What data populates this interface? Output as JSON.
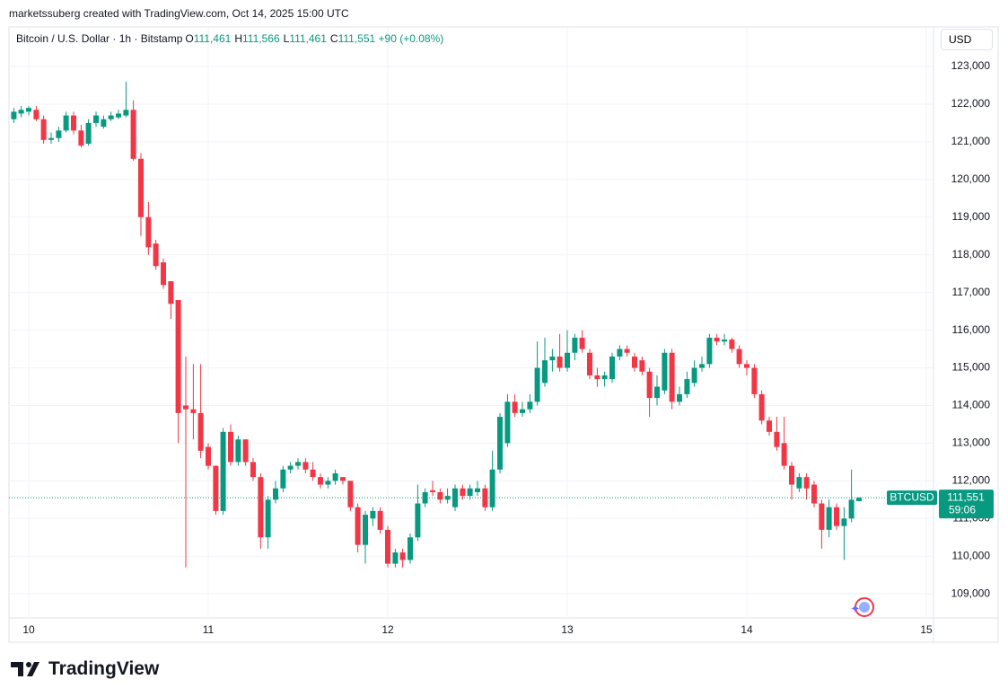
{
  "watermark": "marketssuberg created with TradingView.com, Oct 14, 2025 15:00 UTC",
  "legend": {
    "symbol": "Bitcoin / U.S. Dollar · 1h · Bitstamp",
    "ohlc": [
      {
        "key": "O",
        "value": "111,461"
      },
      {
        "key": "H",
        "value": "111,566"
      },
      {
        "key": "L",
        "value": "111,461"
      },
      {
        "key": "C",
        "value": "111,551"
      }
    ],
    "change": "+90 (+0.08%)"
  },
  "currency": "USD",
  "brand": "TradingView",
  "chart_data": {
    "type": "candlestick",
    "up_color": "#089981",
    "down_color": "#f23645",
    "grid": true,
    "symbol_tag": "BTCUSD",
    "last_price_label": "111,551",
    "countdown": "59:06",
    "xlim": [
      9.89,
      15.04
    ],
    "xticks": [
      10,
      11,
      12,
      13,
      14,
      15
    ],
    "ylim": [
      108360,
      124050
    ],
    "yticks": [
      {
        "value": 109000,
        "label": "109,000"
      },
      {
        "value": 110000,
        "label": "110,000"
      },
      {
        "value": 111000,
        "label": "111,000"
      },
      {
        "value": 112000,
        "label": "112,000"
      },
      {
        "value": 113000,
        "label": "113,000"
      },
      {
        "value": 114000,
        "label": "114,000"
      },
      {
        "value": 115000,
        "label": "115,000"
      },
      {
        "value": 116000,
        "label": "116,000"
      },
      {
        "value": 117000,
        "label": "117,000"
      },
      {
        "value": 118000,
        "label": "118,000"
      },
      {
        "value": 119000,
        "label": "119,000"
      },
      {
        "value": 120000,
        "label": "120,000"
      },
      {
        "value": 121000,
        "label": "121,000"
      },
      {
        "value": 122000,
        "label": "122,000"
      },
      {
        "value": 123000,
        "label": "123,000"
      }
    ],
    "x": [
      9.917,
      9.958,
      10,
      10.042,
      10.083,
      10.125,
      10.167,
      10.208,
      10.25,
      10.292,
      10.333,
      10.375,
      10.417,
      10.458,
      10.5,
      10.542,
      10.583,
      10.625,
      10.667,
      10.708,
      10.75,
      10.792,
      10.833,
      10.875,
      10.917,
      10.958,
      11,
      11.042,
      11.083,
      11.125,
      11.167,
      11.208,
      11.25,
      11.292,
      11.333,
      11.375,
      11.417,
      11.458,
      11.5,
      11.542,
      11.583,
      11.625,
      11.667,
      11.708,
      11.75,
      11.792,
      11.833,
      11.875,
      11.917,
      11.958,
      12,
      12.042,
      12.083,
      12.125,
      12.167,
      12.208,
      12.25,
      12.292,
      12.333,
      12.375,
      12.417,
      12.458,
      12.5,
      12.542,
      12.583,
      12.625,
      12.667,
      12.708,
      12.75,
      12.792,
      12.833,
      12.875,
      12.917,
      12.958,
      13,
      13.042,
      13.083,
      13.125,
      13.167,
      13.208,
      13.25,
      13.292,
      13.333,
      13.375,
      13.417,
      13.458,
      13.5,
      13.542,
      13.583,
      13.625,
      13.667,
      13.708,
      13.75,
      13.792,
      13.833,
      13.875,
      13.917,
      13.958,
      14,
      14.042,
      14.083,
      14.125,
      14.167,
      14.208,
      14.25,
      14.292,
      14.333,
      14.375,
      14.417,
      14.458,
      14.5,
      14.542,
      14.583,
      14.625
    ],
    "open": [
      121600,
      121750,
      121800,
      121850,
      121600,
      121050,
      121100,
      121300,
      121700,
      121300,
      120950,
      121500,
      121400,
      121600,
      121650,
      121700,
      121850,
      120550,
      119000,
      118300,
      117800,
      117300,
      116800,
      114000,
      113900,
      113800,
      112900,
      112400,
      111200,
      113300,
      112500,
      113100,
      112500,
      112100,
      110500,
      111500,
      111800,
      112300,
      112400,
      112500,
      112300,
      112100,
      111900,
      112000,
      112100,
      112000,
      111300,
      110300,
      111000,
      111200,
      110700,
      109800,
      110100,
      109900,
      110500,
      111400,
      111750,
      111700,
      111500,
      111300,
      111800,
      111600,
      111700,
      111800,
      111300,
      112300,
      113000,
      114100,
      113800,
      113900,
      114100,
      114600,
      115200,
      115300,
      115000,
      115400,
      115800,
      115400,
      114800,
      114700,
      114700,
      115300,
      115500,
      115300,
      115200,
      114900,
      114200,
      114400,
      115400,
      114100,
      114300,
      114600,
      115000,
      115100,
      115800,
      115700,
      115750,
      115500,
      115100,
      115000,
      114300,
      113600,
      113300,
      113000,
      112400,
      111800,
      112100,
      111900,
      111400,
      110700,
      111300,
      110800,
      111000,
      111461
    ],
    "high": [
      121900,
      121950,
      121950,
      121950,
      121700,
      121250,
      121400,
      121800,
      121800,
      121450,
      121600,
      121800,
      121700,
      121800,
      121850,
      122600,
      122100,
      120700,
      119400,
      118400,
      117900,
      117300,
      116800,
      115300,
      115100,
      115100,
      113000,
      112400,
      113400,
      113500,
      113200,
      113100,
      112600,
      112200,
      111600,
      112000,
      112400,
      112500,
      112600,
      112600,
      112500,
      112200,
      112100,
      112300,
      112100,
      112000,
      111400,
      111200,
      111300,
      111300,
      110800,
      110200,
      110200,
      110600,
      111900,
      111800,
      112000,
      111800,
      111800,
      111900,
      111900,
      111900,
      112000,
      111900,
      112800,
      113800,
      114300,
      114300,
      114100,
      114300,
      115700,
      115800,
      115500,
      115900,
      116000,
      115900,
      116000,
      115500,
      115000,
      114900,
      115400,
      115600,
      115600,
      115400,
      115300,
      115000,
      114800,
      115500,
      115500,
      114500,
      114900,
      115200,
      115300,
      115900,
      115900,
      115900,
      115800,
      115600,
      115200,
      115100,
      114400,
      113700,
      113700,
      113700,
      112500,
      112200,
      112200,
      112000,
      111500,
      111500,
      111400,
      111300,
      112300,
      111566
    ],
    "low": [
      121500,
      121650,
      121700,
      121550,
      120950,
      120950,
      121000,
      121250,
      121200,
      120850,
      120900,
      121400,
      121350,
      121550,
      121600,
      121650,
      120500,
      118500,
      118000,
      117600,
      117100,
      116300,
      113000,
      109700,
      113100,
      112600,
      112300,
      111100,
      111100,
      112400,
      112400,
      112400,
      112000,
      110200,
      110200,
      111400,
      111700,
      112200,
      112300,
      112200,
      112000,
      111800,
      111800,
      111900,
      111900,
      111200,
      110100,
      109800,
      110800,
      110600,
      109700,
      109700,
      109700,
      109800,
      110400,
      111300,
      111600,
      111400,
      111400,
      111200,
      111500,
      111500,
      111600,
      111200,
      111200,
      112200,
      112900,
      113700,
      113700,
      113800,
      114000,
      114500,
      114900,
      114900,
      114900,
      115200,
      115400,
      114700,
      114500,
      114500,
      114600,
      115200,
      115300,
      114900,
      114800,
      113700,
      114000,
      114300,
      113900,
      114000,
      114200,
      114500,
      114900,
      115000,
      115600,
      115600,
      115400,
      115000,
      114800,
      114200,
      113500,
      113200,
      112800,
      112300,
      111500,
      111700,
      111500,
      111300,
      110200,
      110500,
      110700,
      109900,
      110900,
      111461
    ],
    "close": [
      121800,
      121850,
      121900,
      121600,
      121050,
      121100,
      121300,
      121700,
      121300,
      120900,
      121500,
      121700,
      121600,
      121700,
      121750,
      121850,
      120550,
      119000,
      118200,
      117700,
      117200,
      116700,
      113800,
      113900,
      113800,
      112800,
      112400,
      111200,
      113300,
      112500,
      113100,
      112500,
      112100,
      110500,
      111500,
      111800,
      112300,
      112400,
      112500,
      112300,
      112100,
      111900,
      112000,
      112200,
      112000,
      111300,
      110300,
      111100,
      111200,
      110700,
      109800,
      110100,
      109900,
      110500,
      111400,
      111700,
      111700,
      111500,
      111600,
      111800,
      111600,
      111800,
      111800,
      111300,
      112300,
      113700,
      114100,
      113800,
      113900,
      114100,
      115000,
      115200,
      115300,
      115000,
      115400,
      115800,
      115500,
      114800,
      114700,
      114800,
      115300,
      115500,
      115400,
      115000,
      114900,
      114200,
      114500,
      115400,
      114100,
      114300,
      114700,
      115000,
      115100,
      115800,
      115700,
      115750,
      115500,
      115100,
      115000,
      114300,
      113600,
      113300,
      112900,
      112400,
      111900,
      112100,
      111800,
      111400,
      110700,
      111300,
      110800,
      111000,
      111500,
      111551
    ]
  }
}
